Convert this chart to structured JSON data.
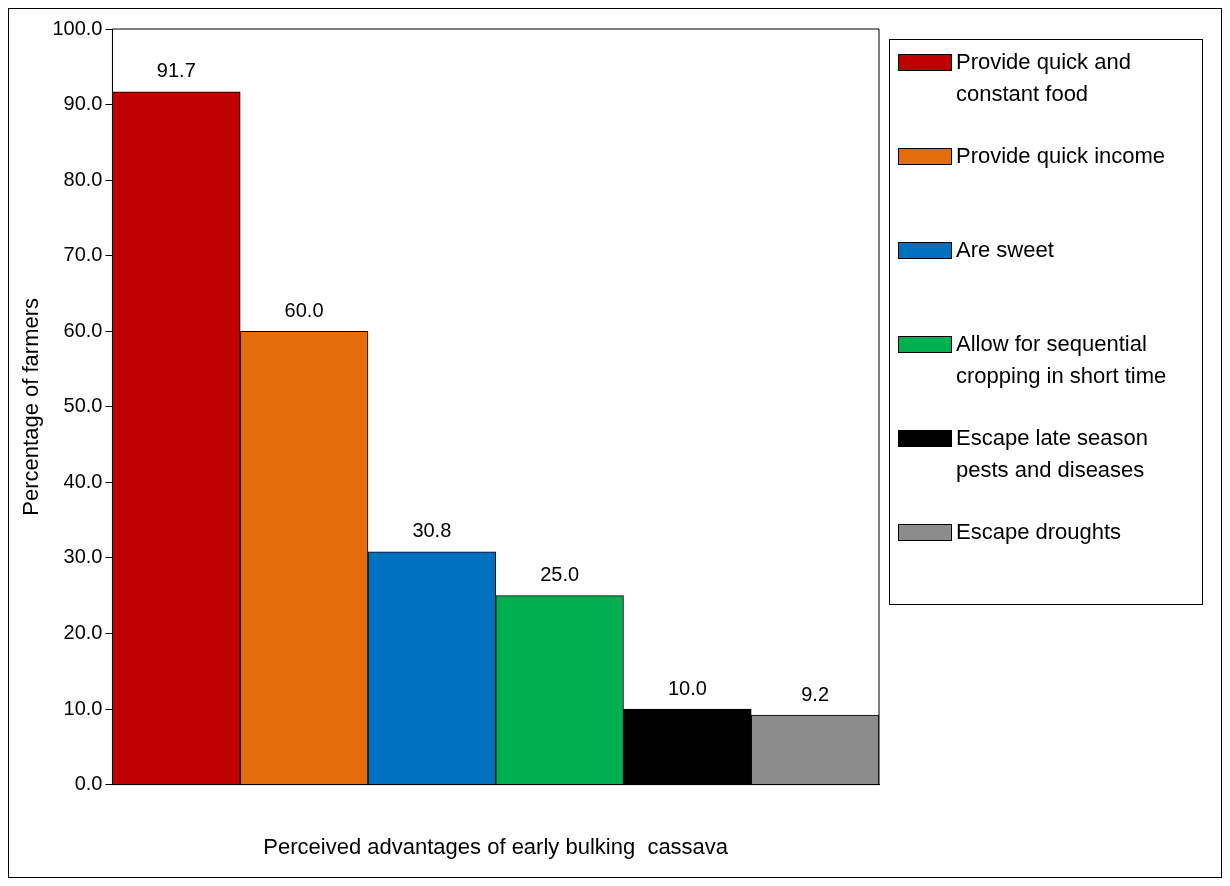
{
  "chart_data": {
    "type": "bar",
    "xlabel": "Perceived advantages of early bulking  cassava",
    "ylabel": "Percentage of farmers",
    "categories": [
      null
    ],
    "series": [
      {
        "name": "Provide quick and constant  food",
        "color": "#c00000",
        "values": [
          91.7
        ],
        "value_labels": [
          "91.7"
        ]
      },
      {
        "name": "Provide quick income",
        "color": "#e46c0a",
        "values": [
          60
        ],
        "value_labels": [
          "60.0"
        ]
      },
      {
        "name": "Are sweet",
        "color": "#0070c0",
        "values": [
          30.8
        ],
        "value_labels": [
          "30.8"
        ]
      },
      {
        "name": "Allow for sequential cropping in short time",
        "color": "#00b050",
        "values": [
          25
        ],
        "value_labels": [
          "25.0"
        ]
      },
      {
        "name": "Escape late season pests and diseases",
        "color": "#000000",
        "values": [
          10
        ],
        "value_labels": [
          "10.0"
        ]
      },
      {
        "name": "Escape droughts",
        "color": "#8c8c8c",
        "values": [
          9.2
        ],
        "value_labels": [
          "9.2"
        ]
      }
    ],
    "ylim": [
      0,
      100
    ],
    "yticks": [
      {
        "value": 0,
        "label": "0.0"
      },
      {
        "value": 10,
        "label": "10.0"
      },
      {
        "value": 20,
        "label": "20.0"
      },
      {
        "value": 30,
        "label": "30.0"
      },
      {
        "value": 40,
        "label": "40.0"
      },
      {
        "value": 50,
        "label": "50.0"
      },
      {
        "value": 60,
        "label": "60.0"
      },
      {
        "value": 70,
        "label": "70.0"
      },
      {
        "value": 80,
        "label": "80.0"
      },
      {
        "value": 90,
        "label": "90.0"
      },
      {
        "value": 100,
        "label": "100.0"
      }
    ],
    "grid": false,
    "legend": "right"
  }
}
